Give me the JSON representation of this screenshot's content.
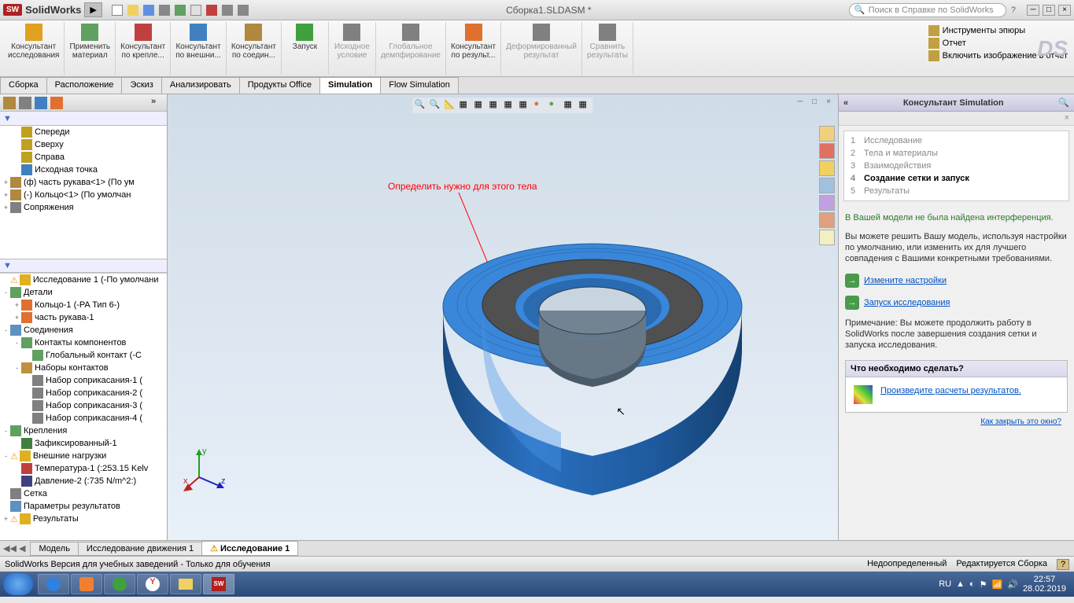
{
  "app": {
    "logo": "SW",
    "name": "SolidWorks",
    "doc_title": "Сборка1.SLDASM *",
    "search_placeholder": "Поиск в Справке по SolidWorks"
  },
  "ribbon": {
    "buttons": [
      {
        "label": "Консультант исследования",
        "gray": false
      },
      {
        "label": "Применить материал",
        "gray": false
      },
      {
        "label": "Консультант по крепле...",
        "gray": false
      },
      {
        "label": "Консультант по внешни...",
        "gray": false
      },
      {
        "label": "Консультант по соедин...",
        "gray": false
      },
      {
        "label": "Запуск",
        "gray": false
      },
      {
        "label": "Исходное условие",
        "gray": true
      },
      {
        "label": "Глобальное демпфирование",
        "gray": true
      },
      {
        "label": "Консультант по результ...",
        "gray": false
      },
      {
        "label": "Деформированный результат",
        "gray": true
      },
      {
        "label": "Сравнить результаты",
        "gray": true
      }
    ],
    "right": [
      {
        "label": "Инструменты эпюры"
      },
      {
        "label": "Отчет"
      },
      {
        "label": "Включить изображение в отчет"
      }
    ]
  },
  "tabs": [
    "Сборка",
    "Расположение",
    "Эскиз",
    "Анализировать",
    "Продукты Office",
    "Simulation",
    "Flow Simulation"
  ],
  "active_tab": 5,
  "tree_top": [
    {
      "indent": 1,
      "icon": "#c0a020",
      "label": "Спереди"
    },
    {
      "indent": 1,
      "icon": "#c0a020",
      "label": "Сверху"
    },
    {
      "indent": 1,
      "icon": "#c0a020",
      "label": "Справа"
    },
    {
      "indent": 1,
      "icon": "#4080c0",
      "label": "Исходная точка"
    },
    {
      "indent": 0,
      "exp": "+",
      "icon": "#b08840",
      "label": "(ф) часть рукава<1> (По ум"
    },
    {
      "indent": 0,
      "exp": "+",
      "icon": "#b08840",
      "label": "(-) Кольцо<1> (По умолчан"
    },
    {
      "indent": 0,
      "exp": "+",
      "icon": "#808080",
      "label": "Сопряжения"
    }
  ],
  "tree_study": [
    {
      "indent": 0,
      "icon": "#e0b020",
      "warn": true,
      "label": "Исследование 1 (-По умолчани"
    },
    {
      "indent": 0,
      "exp": "-",
      "icon": "#60a060",
      "label": "Детали"
    },
    {
      "indent": 1,
      "exp": "+",
      "icon": "#e07030",
      "label": "Кольцо-1 (-PA Тип 6-)"
    },
    {
      "indent": 1,
      "exp": "+",
      "icon": "#e07030",
      "label": "часть рукава-1"
    },
    {
      "indent": 0,
      "exp": "-",
      "icon": "#6090c0",
      "label": "Соединения"
    },
    {
      "indent": 1,
      "exp": "-",
      "icon": "#60a060",
      "label": "Контакты компонентов"
    },
    {
      "indent": 2,
      "icon": "#60a060",
      "label": "Глобальный контакт (-С"
    },
    {
      "indent": 1,
      "exp": "-",
      "icon": "#c09040",
      "label": "Наборы контактов"
    },
    {
      "indent": 2,
      "icon": "#808080",
      "label": "Набор соприкасания-1 ("
    },
    {
      "indent": 2,
      "icon": "#808080",
      "label": "Набор соприкасания-2 ("
    },
    {
      "indent": 2,
      "icon": "#808080",
      "label": "Набор соприкасания-3 ("
    },
    {
      "indent": 2,
      "icon": "#808080",
      "label": "Набор соприкасания-4 ("
    },
    {
      "indent": 0,
      "exp": "-",
      "icon": "#60a060",
      "label": "Крепления"
    },
    {
      "indent": 1,
      "icon": "#408040",
      "label": "Зафиксированный-1"
    },
    {
      "indent": 0,
      "exp": "-",
      "icon": "#e0b020",
      "warn": true,
      "label": "Внешние нагрузки"
    },
    {
      "indent": 1,
      "icon": "#c04040",
      "label": "Температура-1 (:253.15 Kelv"
    },
    {
      "indent": 1,
      "icon": "#404080",
      "label": "Давление-2 (:735 N/m^2:)"
    },
    {
      "indent": 0,
      "icon": "#808080",
      "label": "Сетка"
    },
    {
      "indent": 0,
      "icon": "#6090c0",
      "label": "Параметры результатов"
    },
    {
      "indent": 0,
      "exp": "+",
      "icon": "#e0b020",
      "warn": true,
      "label": "Результаты"
    }
  ],
  "annotation": "Определить нужно для этого тела",
  "model": {
    "color_outer": "#2876c8",
    "color_outer_dark": "#1e5a9e",
    "color_top": "#3a86d8",
    "color_inner": "#505050",
    "color_hole": "#888888"
  },
  "consultant": {
    "title": "Консультант Simulation",
    "steps": [
      {
        "n": "1",
        "label": "Исследование",
        "state": "done"
      },
      {
        "n": "2",
        "label": "Тела и материалы",
        "state": "done"
      },
      {
        "n": "3",
        "label": "Взаимодействия",
        "state": "done"
      },
      {
        "n": "4",
        "label": "Создание сетки и запуск",
        "state": "active"
      },
      {
        "n": "5",
        "label": "Результаты",
        "state": "done"
      }
    ],
    "green_msg": "В Вашей модели не была найдена интерференция.",
    "body_msg": "Вы можете решить Вашу модель, используя настройки по умолчанию, или изменить их для лучшего совпадения с Вашими конкретными требованиями.",
    "action1": "Измените настройки",
    "action2": "Запуск исследования",
    "note": "Примечание: Вы можете продолжить работу в SolidWorks после завершения создания сетки и запуска исследования.",
    "todo_title": "Что необходимо сделать?",
    "todo_link": "Произведите расчеты результатов.",
    "close_link": "Как закрыть это окно?"
  },
  "bottom_tabs": [
    "Модель",
    "Исследование движения 1",
    "Исследование 1"
  ],
  "bottom_active": 2,
  "statusbar": {
    "left": "SolidWorks Версия для учебных заведений - Только для обучения",
    "r1": "Недоопределенный",
    "r2": "Редактируется Сборка"
  },
  "taskbar": {
    "lang": "RU",
    "time": "22:57",
    "date": "28.02.2019"
  }
}
